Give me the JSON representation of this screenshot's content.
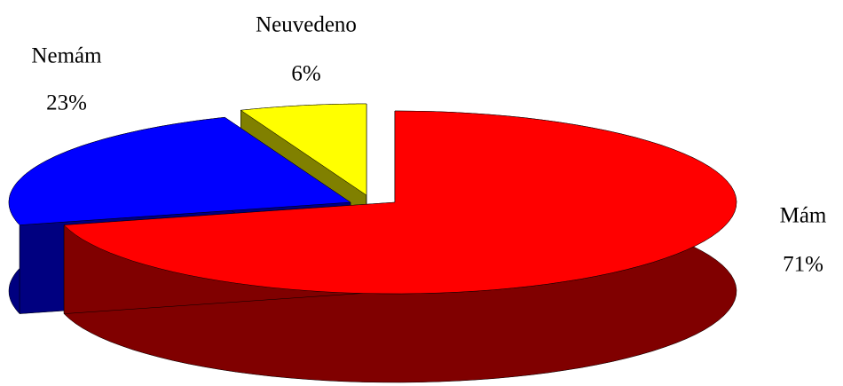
{
  "chart_data": {
    "type": "pie3d",
    "categories": [
      "Mám",
      "Nemám",
      "Neuvedeno"
    ],
    "values": [
      71,
      23,
      6
    ],
    "value_labels": [
      "71%",
      "23%",
      "6%"
    ],
    "colors": [
      "#ff0000",
      "#0000ff",
      "#ffff00"
    ]
  }
}
